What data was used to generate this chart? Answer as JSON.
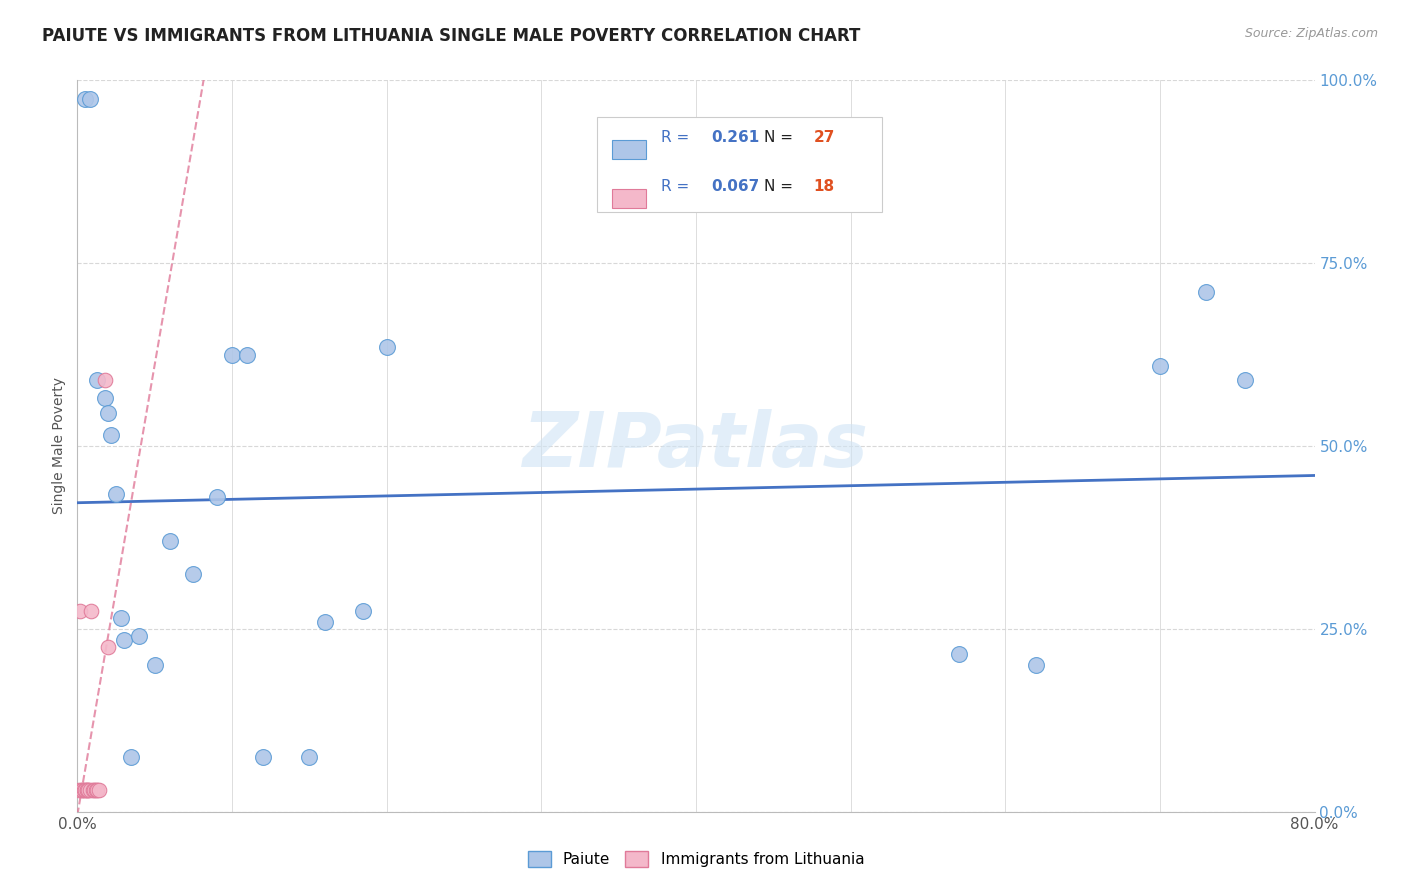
{
  "title": "PAIUTE VS IMMIGRANTS FROM LITHUANIA SINGLE MALE POVERTY CORRELATION CHART",
  "source": "Source: ZipAtlas.com",
  "ylabel": "Single Male Poverty",
  "watermark": "ZIPatlas",
  "xlim": [
    0.0,
    0.8
  ],
  "ylim": [
    0.0,
    1.0
  ],
  "xtick_positions": [
    0.0,
    0.1,
    0.2,
    0.3,
    0.4,
    0.5,
    0.6,
    0.7,
    0.8
  ],
  "xtick_labels": [
    "0.0%",
    "",
    "",
    "",
    "",
    "",
    "",
    "",
    "80.0%"
  ],
  "ytick_positions": [
    0.0,
    0.25,
    0.5,
    0.75,
    1.0
  ],
  "ytick_labels_right": [
    "0.0%",
    "25.0%",
    "50.0%",
    "75.0%",
    "100.0%"
  ],
  "paiute_R": "0.261",
  "paiute_N": "27",
  "lithuania_R": "0.067",
  "lithuania_N": "18",
  "paiute_color": "#aec6e8",
  "paiute_edge_color": "#5b9bd5",
  "lithuania_color": "#f4b8ca",
  "lithuania_edge_color": "#e07a99",
  "paiute_line_color": "#4472c4",
  "lithuania_line_color": "#e07a99",
  "paiute_x": [
    0.005,
    0.008,
    0.013,
    0.018,
    0.02,
    0.022,
    0.025,
    0.028,
    0.03,
    0.035,
    0.04,
    0.05,
    0.06,
    0.075,
    0.09,
    0.1,
    0.11,
    0.12,
    0.15,
    0.16,
    0.185,
    0.2,
    0.57,
    0.62,
    0.7,
    0.73,
    0.755
  ],
  "paiute_y": [
    0.975,
    0.975,
    0.59,
    0.565,
    0.545,
    0.515,
    0.435,
    0.265,
    0.235,
    0.075,
    0.24,
    0.2,
    0.37,
    0.325,
    0.43,
    0.625,
    0.625,
    0.075,
    0.075,
    0.26,
    0.275,
    0.635,
    0.215,
    0.2,
    0.61,
    0.71,
    0.59
  ],
  "lithuania_x": [
    0.001,
    0.002,
    0.003,
    0.003,
    0.004,
    0.005,
    0.006,
    0.006,
    0.007,
    0.008,
    0.009,
    0.01,
    0.011,
    0.012,
    0.013,
    0.014,
    0.018,
    0.02
  ],
  "lithuania_y": [
    0.03,
    0.275,
    0.03,
    0.03,
    0.03,
    0.03,
    0.03,
    0.03,
    0.03,
    0.03,
    0.275,
    0.03,
    0.03,
    0.03,
    0.03,
    0.03,
    0.59,
    0.225
  ],
  "background_color": "#ffffff",
  "grid_color": "#d8d8d8"
}
